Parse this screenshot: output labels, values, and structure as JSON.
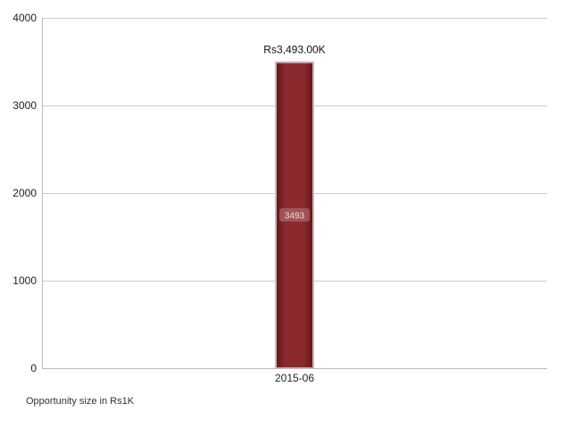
{
  "chart_data": {
    "type": "bar",
    "categories": [
      "2015-06"
    ],
    "values": [
      3493
    ],
    "value_labels": [
      "Rs3,493.00K"
    ],
    "inner_labels": [
      "3493"
    ],
    "ylim": [
      0,
      4000
    ],
    "yticks": [
      0,
      1000,
      2000,
      3000,
      4000
    ],
    "grid": true,
    "legend": "none",
    "bar_color": "#8b2a2e",
    "bar_border_color": "#c9b8b8",
    "grid_color": "#cccccc",
    "axis_color": "#bbbbbb",
    "footnote": "Opportunity size in Rs1K"
  }
}
